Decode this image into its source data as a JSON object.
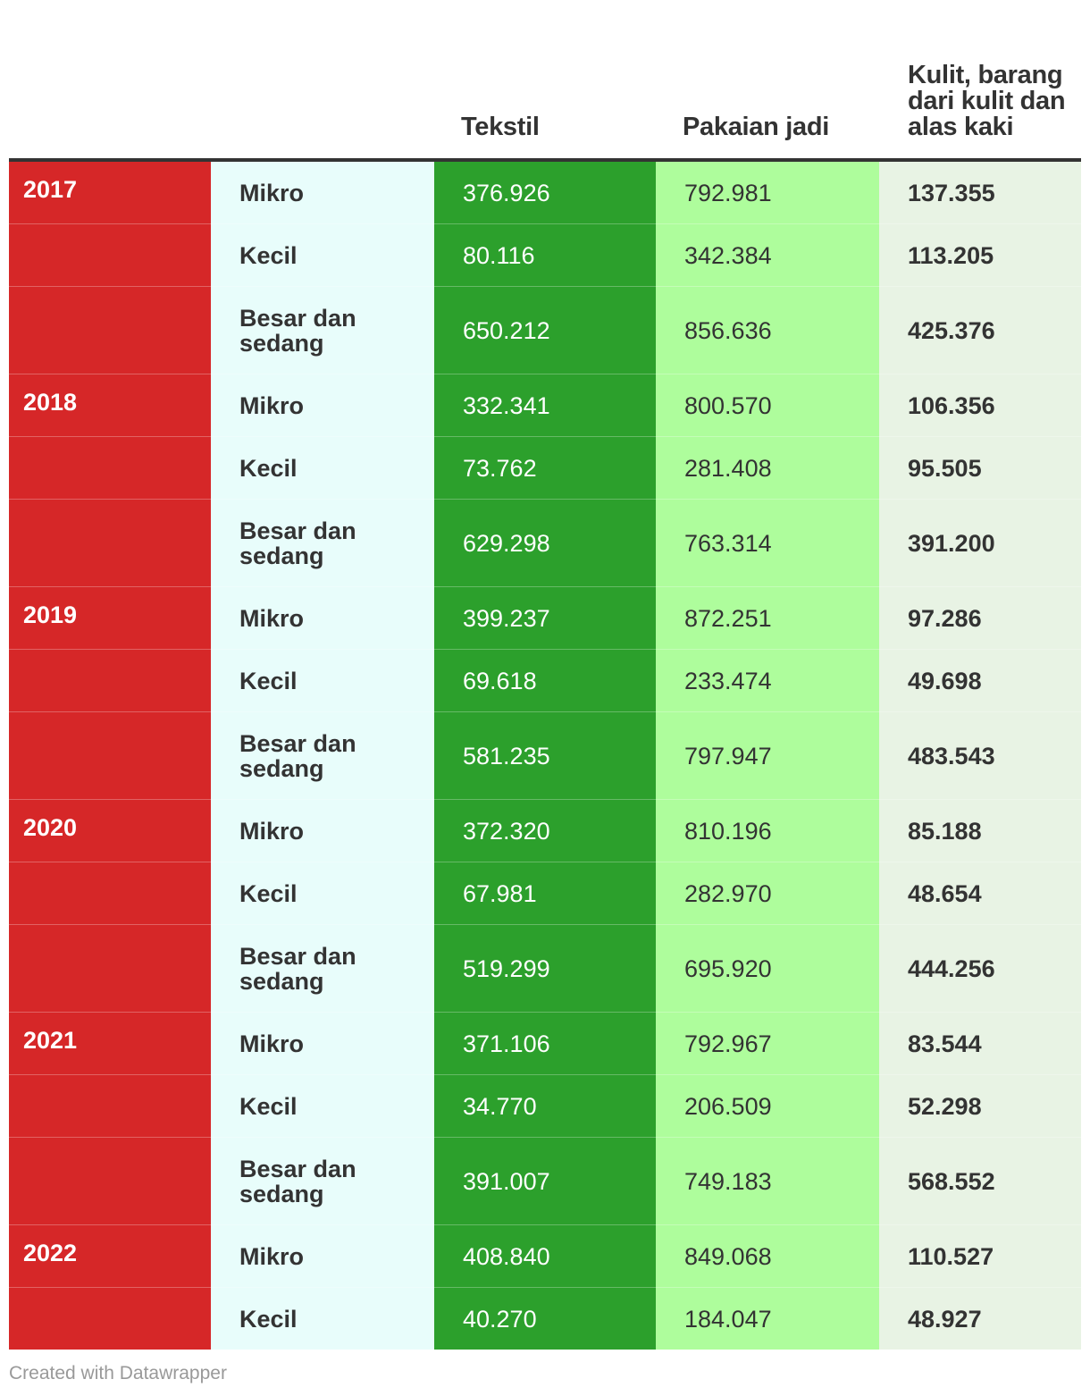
{
  "chart_data": {
    "type": "table",
    "columns": [
      "",
      "",
      "Tekstil",
      "Pakaian jadi",
      "Kulit, barang dari kulit dan alas kaki"
    ],
    "rows": [
      {
        "year": "2017",
        "size": "Mikro",
        "tekstil": "376.926",
        "pakaian": "792.981",
        "kulit": "137.355"
      },
      {
        "year": "",
        "size": "Kecil",
        "tekstil": "80.116",
        "pakaian": "342.384",
        "kulit": "113.205"
      },
      {
        "year": "",
        "size": "Besar dan sedang",
        "tekstil": "650.212",
        "pakaian": "856.636",
        "kulit": "425.376"
      },
      {
        "year": "2018",
        "size": "Mikro",
        "tekstil": "332.341",
        "pakaian": "800.570",
        "kulit": "106.356"
      },
      {
        "year": "",
        "size": "Kecil",
        "tekstil": "73.762",
        "pakaian": "281.408",
        "kulit": "95.505"
      },
      {
        "year": "",
        "size": "Besar dan sedang",
        "tekstil": "629.298",
        "pakaian": "763.314",
        "kulit": "391.200"
      },
      {
        "year": "2019",
        "size": "Mikro",
        "tekstil": "399.237",
        "pakaian": "872.251",
        "kulit": "97.286"
      },
      {
        "year": "",
        "size": "Kecil",
        "tekstil": "69.618",
        "pakaian": "233.474",
        "kulit": "49.698"
      },
      {
        "year": "",
        "size": "Besar dan sedang",
        "tekstil": "581.235",
        "pakaian": "797.947",
        "kulit": "483.543"
      },
      {
        "year": "2020",
        "size": "Mikro",
        "tekstil": "372.320",
        "pakaian": "810.196",
        "kulit": "85.188"
      },
      {
        "year": "",
        "size": "Kecil",
        "tekstil": "67.981",
        "pakaian": "282.970",
        "kulit": "48.654"
      },
      {
        "year": "",
        "size": "Besar dan sedang",
        "tekstil": "519.299",
        "pakaian": "695.920",
        "kulit": "444.256"
      },
      {
        "year": "2021",
        "size": "Mikro",
        "tekstil": "371.106",
        "pakaian": "792.967",
        "kulit": "83.544"
      },
      {
        "year": "",
        "size": "Kecil",
        "tekstil": "34.770",
        "pakaian": "206.509",
        "kulit": "52.298"
      },
      {
        "year": "",
        "size": "Besar dan sedang",
        "tekstil": "391.007",
        "pakaian": "749.183",
        "kulit": "568.552"
      },
      {
        "year": "2022",
        "size": "Mikro",
        "tekstil": "408.840",
        "pakaian": "849.068",
        "kulit": "110.527"
      },
      {
        "year": "",
        "size": "Kecil",
        "tekstil": "40.270",
        "pakaian": "184.047",
        "kulit": "48.927"
      }
    ]
  },
  "colors": {
    "year_column": "#d62728",
    "size_column": "#e8fdfb",
    "tekstil_column": "#2ca02c",
    "pakaian_column": "#aefd9c",
    "kulit_column": "#e8f3e4",
    "header_rule": "#333333"
  },
  "footer": {
    "credit": "Created with Datawrapper"
  }
}
